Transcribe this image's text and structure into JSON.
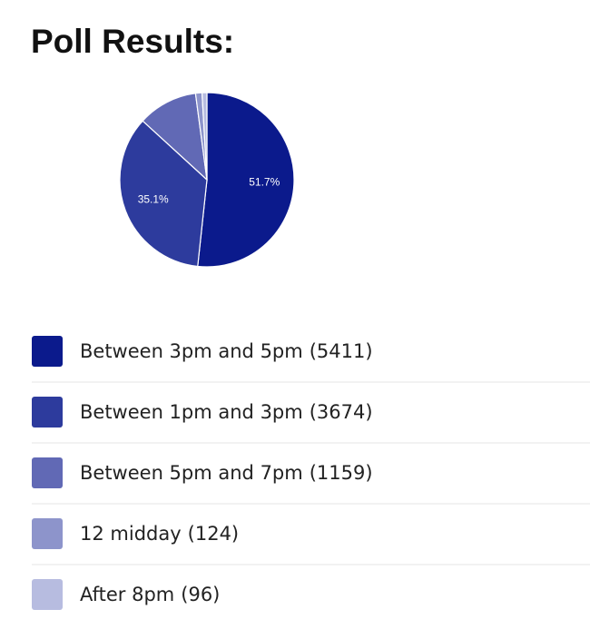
{
  "title": "Poll Results:",
  "chart_data": {
    "type": "pie",
    "categories": [
      "Between 3pm and 5pm",
      "Between 1pm and 3pm",
      "Between 5pm and 7pm",
      "12 midday",
      "After 8pm"
    ],
    "count_labels": [
      "(5411)",
      "(3674)",
      "(1159)",
      "(124)",
      "(96)"
    ],
    "values": [
      51.7,
      35.1,
      11.1,
      1.2,
      0.9
    ],
    "value_labels": [
      "51.7%",
      "35.1%",
      null,
      null,
      null
    ],
    "colors": [
      "#0b1a8c",
      "#2d3b9d",
      "#6169b5",
      "#8d94cb",
      "#b7bce0"
    ]
  }
}
